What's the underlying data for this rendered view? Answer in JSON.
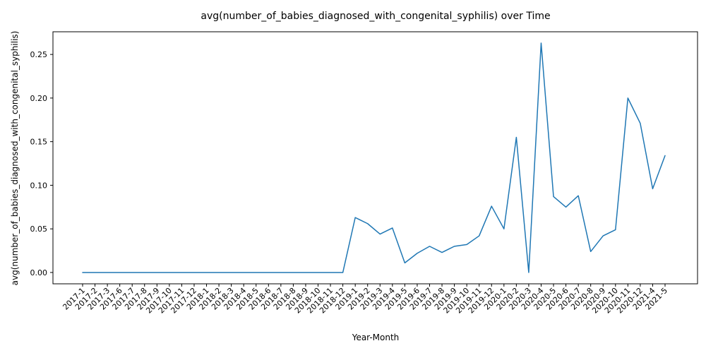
{
  "chart_data": {
    "type": "line",
    "title": "avg(number_of_babies_diagnosed_with_congenital_syphilis) over Time",
    "xlabel": "Year-Month",
    "ylabel": "avg(number_of_babies_diagnosed_with_congenital_syphilis)",
    "ylim": [
      -0.013,
      0.276
    ],
    "yticks": [
      0.0,
      0.05,
      0.1,
      0.15,
      0.2,
      0.25
    ],
    "ytick_labels": [
      "0.00",
      "0.05",
      "0.10",
      "0.15",
      "0.20",
      "0.25"
    ],
    "grid": false,
    "line_color": "#1f77b4",
    "categories": [
      "2017-1",
      "2017-2",
      "2017-3",
      "2017-6",
      "2017-7",
      "2017-8",
      "2017-9",
      "2017-10",
      "2017-11",
      "2017-12",
      "2018-1",
      "2018-2",
      "2018-3",
      "2018-4",
      "2018-5",
      "2018-6",
      "2018-7",
      "2018-8",
      "2018-9",
      "2018-10",
      "2018-11",
      "2018-12",
      "2019-1",
      "2019-2",
      "2019-3",
      "2019-4",
      "2019-5",
      "2019-6",
      "2019-7",
      "2019-8",
      "2019-9",
      "2019-10",
      "2019-11",
      "2019-12",
      "2020-1",
      "2020-2",
      "2020-3",
      "2020-4",
      "2020-5",
      "2020-6",
      "2020-7",
      "2020-8",
      "2020-9",
      "2020-10",
      "2020-11",
      "2020-12",
      "2021-4",
      "2021-5"
    ],
    "series": [
      {
        "values": [
          0,
          0,
          0,
          0,
          0,
          0,
          0,
          0,
          0,
          0,
          0,
          0,
          0,
          0,
          0,
          0,
          0,
          0,
          0,
          0,
          0,
          0,
          0.063,
          0.056,
          0.044,
          0.051,
          0.011,
          0.022,
          0.03,
          0.023,
          0.03,
          0.032,
          0.042,
          0.076,
          0.05,
          0.155,
          0.0,
          0.263,
          0.087,
          0.075,
          0.088,
          0.024,
          0.042,
          0.049,
          0.2,
          0.171,
          0.096,
          0.134
        ]
      }
    ]
  }
}
